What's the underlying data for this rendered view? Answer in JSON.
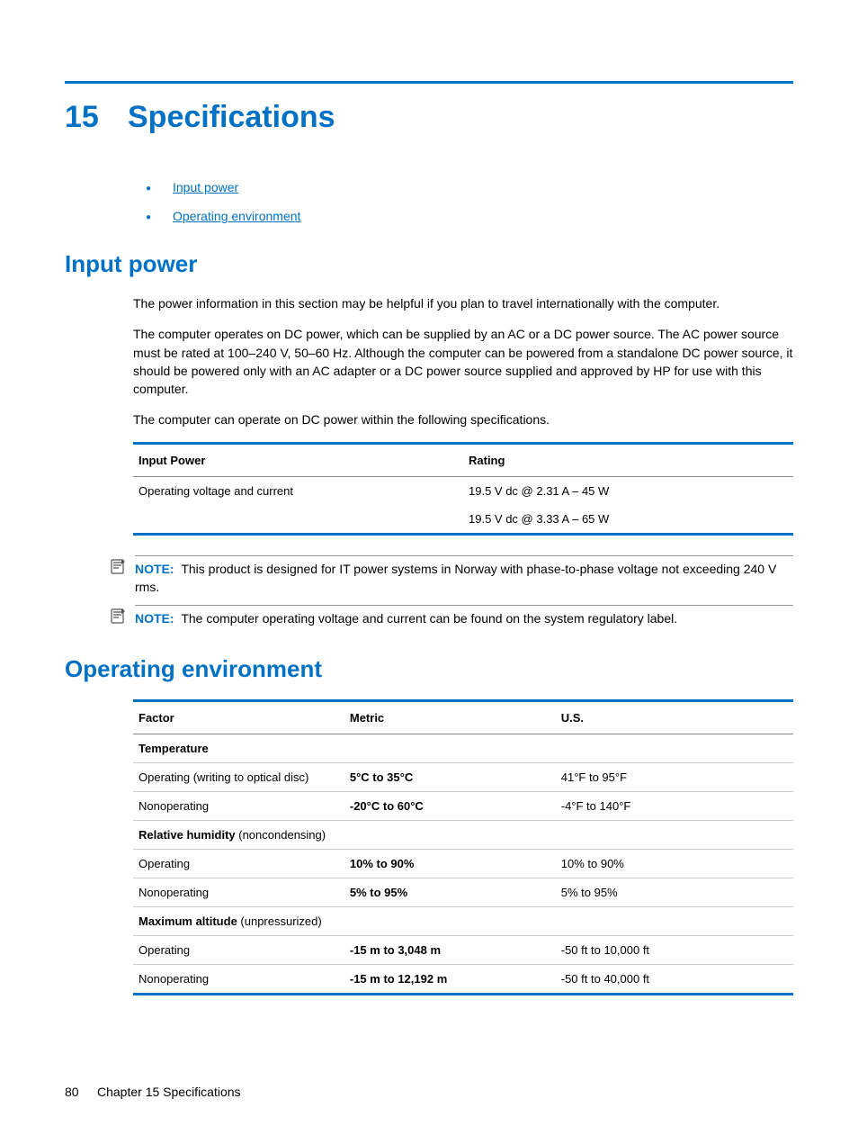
{
  "colors": {
    "accent": "#0071c5",
    "rule_grey": "#888888",
    "row_grey": "#cccccc",
    "text": "#000000",
    "bg": "#ffffff"
  },
  "chapter": {
    "number": "15",
    "title": "Specifications"
  },
  "toc": {
    "items": [
      "Input power",
      "Operating environment"
    ]
  },
  "section1": {
    "heading": "Input power",
    "p1": "The power information in this section may be helpful if you plan to travel internationally with the computer.",
    "p2": "The computer operates on DC power, which can be supplied by an AC or a DC power source. The AC power source must be rated at 100–240 V, 50–60 Hz. Although the computer can be powered from a standalone DC power source, it should be powered only with an AC adapter or a DC power source supplied and approved by HP for use with this computer.",
    "p3": "The computer can operate on DC power within the following specifications.",
    "table": {
      "columns": [
        "Input Power",
        "Rating"
      ],
      "col_widths": [
        "50%",
        "50%"
      ],
      "rows": [
        [
          "Operating voltage and current",
          "19.5 V dc @ 2.31 A – 45 W"
        ],
        [
          "",
          "19.5 V dc @ 3.33 A – 65 W"
        ]
      ]
    },
    "note1": {
      "label": "NOTE:",
      "text": "This product is designed for IT power systems in Norway with phase-to-phase voltage not exceeding 240 V rms."
    },
    "note2": {
      "label": "NOTE:",
      "text": "The computer operating voltage and current can be found on the system regulatory label."
    }
  },
  "section2": {
    "heading": "Operating environment",
    "table": {
      "columns": [
        "Factor",
        "Metric",
        "U.S."
      ],
      "col_widths": [
        "32%",
        "32%",
        "36%"
      ],
      "groups": [
        {
          "title": "Temperature",
          "title_suffix": "",
          "rows": [
            {
              "label": "Operating (writing to optical disc)",
              "metric": "5°C to 35°C",
              "us": "41°F to 95°F",
              "metric_bold": true
            },
            {
              "label": "Nonoperating",
              "metric": "-20°C to 60°C",
              "us": "-4°F to 140°F",
              "metric_bold": true
            }
          ]
        },
        {
          "title": "Relative humidity",
          "title_suffix": " (noncondensing)",
          "rows": [
            {
              "label": "Operating",
              "metric": "10% to 90%",
              "us": "10% to 90%",
              "metric_bold": true
            },
            {
              "label": "Nonoperating",
              "metric": "5% to 95%",
              "us": "5% to 95%",
              "metric_bold": true
            }
          ]
        },
        {
          "title": "Maximum altitude",
          "title_suffix": " (unpressurized)",
          "rows": [
            {
              "label": "Operating",
              "metric": "-15 m to 3,048 m",
              "us": "-50 ft to 10,000 ft",
              "metric_bold": true
            },
            {
              "label": "Nonoperating",
              "metric": "-15 m to 12,192 m",
              "us": "-50 ft to 40,000 ft",
              "metric_bold": true
            }
          ]
        }
      ]
    }
  },
  "footer": {
    "page": "80",
    "text": "Chapter 15   Specifications"
  }
}
